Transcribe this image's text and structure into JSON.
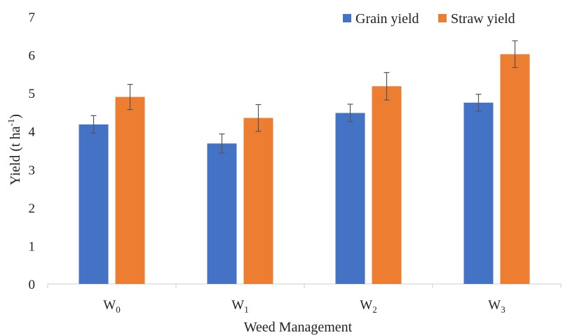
{
  "chart_data": {
    "type": "bar",
    "categories": [
      {
        "base": "W",
        "sub": "0"
      },
      {
        "base": "W",
        "sub": "1"
      },
      {
        "base": "W",
        "sub": "2"
      },
      {
        "base": "W",
        "sub": "3"
      }
    ],
    "series": [
      {
        "name": "Grain yield",
        "color": "#4472C4",
        "values": [
          4.18,
          3.68,
          4.48,
          4.75
        ],
        "errors": [
          0.23,
          0.25,
          0.23,
          0.22
        ]
      },
      {
        "name": "Straw yield",
        "color": "#ED7D31",
        "values": [
          4.9,
          4.35,
          5.18,
          6.02
        ],
        "errors": [
          0.33,
          0.35,
          0.36,
          0.35
        ]
      }
    ],
    "xlabel": "Weed Management",
    "ylabel": {
      "main": "Yield (t ha",
      "sup": "-1",
      "end": ")"
    },
    "ylim": [
      0,
      7
    ],
    "yticks": [
      "0",
      "1",
      "2",
      "3",
      "4",
      "5",
      "6",
      "7"
    ],
    "legend_position": "top-right",
    "grid": false,
    "error_bar_color": "#555555"
  }
}
